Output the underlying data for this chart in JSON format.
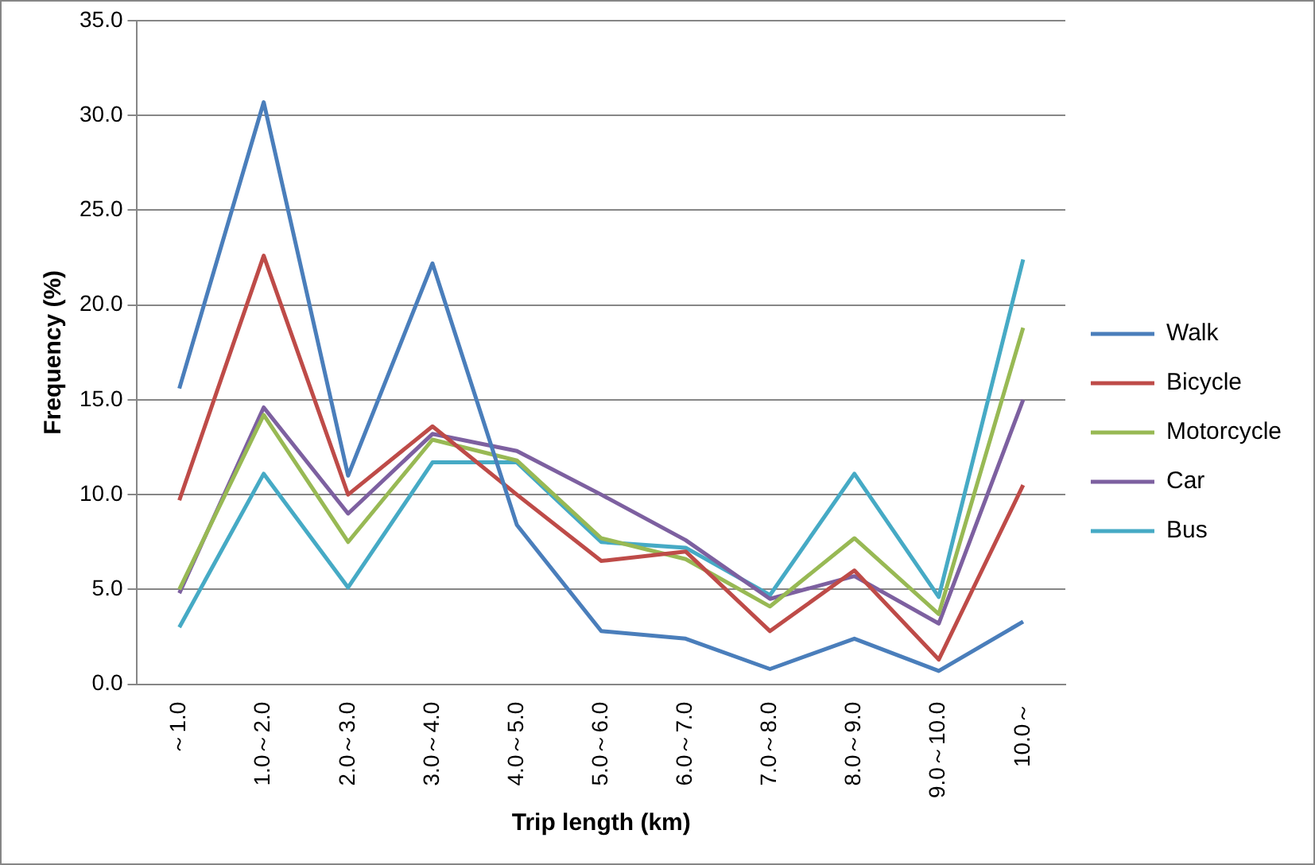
{
  "chart_data": {
    "type": "line",
    "xlabel": "Trip length (km)",
    "ylabel": "Frequency (%)",
    "categories": [
      "～1.0",
      "1.0～2.0",
      "2.0～3.0",
      "3.0～4.0",
      "4.0～5.0",
      "5.0～6.0",
      "6.0～7.0",
      "7.0～8.0",
      "8.0～9.0",
      "9.0～10.0",
      "10.0～"
    ],
    "series": [
      {
        "name": "Walk",
        "color": "#4a7ebb",
        "values": [
          15.6,
          30.7,
          11.0,
          22.2,
          8.4,
          2.8,
          2.4,
          0.8,
          2.4,
          0.7,
          3.3
        ]
      },
      {
        "name": "Bicycle",
        "color": "#be4b48",
        "values": [
          9.7,
          22.6,
          10.0,
          13.6,
          10.0,
          6.5,
          7.0,
          2.8,
          6.0,
          1.3,
          10.5
        ]
      },
      {
        "name": "Motorcycle",
        "color": "#98b954",
        "values": [
          5.0,
          14.2,
          7.5,
          12.9,
          11.8,
          7.7,
          6.6,
          4.1,
          7.7,
          3.7,
          18.8
        ]
      },
      {
        "name": "Car",
        "color": "#7d60a0",
        "values": [
          4.8,
          14.6,
          9.0,
          13.2,
          12.3,
          10.0,
          7.6,
          4.5,
          5.7,
          3.2,
          15.0
        ]
      },
      {
        "name": "Bus",
        "color": "#46aac5",
        "values": [
          3.0,
          11.1,
          5.1,
          11.7,
          11.7,
          7.5,
          7.2,
          4.7,
          11.1,
          4.6,
          22.4
        ]
      }
    ],
    "ylim": [
      0,
      35
    ],
    "yticks": [
      {
        "value": 0,
        "label": "0.0"
      },
      {
        "value": 5,
        "label": "5.0"
      },
      {
        "value": 10,
        "label": "10.0"
      },
      {
        "value": 15,
        "label": "15.0"
      },
      {
        "value": 20,
        "label": "20.0"
      },
      {
        "value": 25,
        "label": "25.0"
      },
      {
        "value": 30,
        "label": "30.0"
      },
      {
        "value": 35,
        "label": "35.0"
      }
    ],
    "grid": "y",
    "legend": "right",
    "marker": "none",
    "line_style": "solid"
  }
}
